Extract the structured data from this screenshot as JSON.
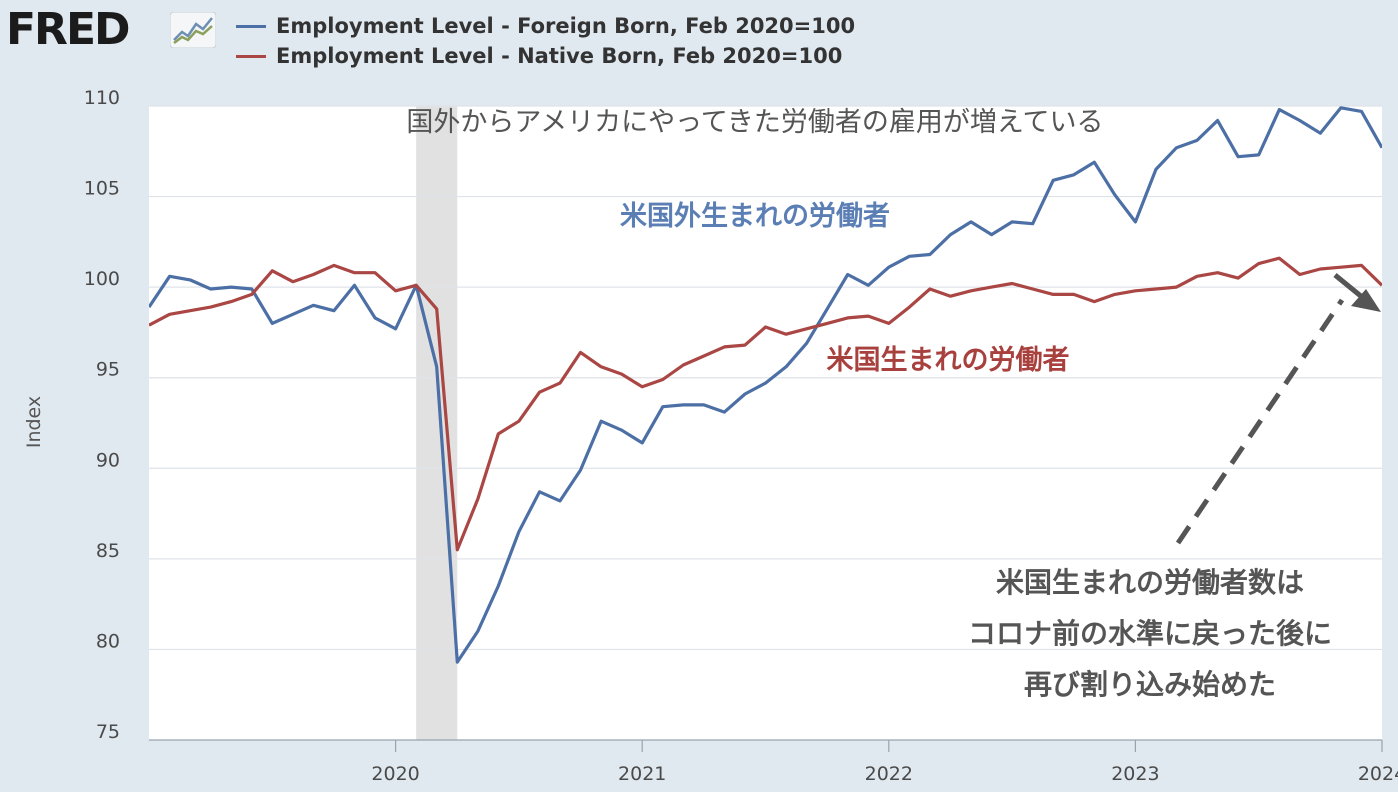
{
  "logo": {
    "text": "FRED"
  },
  "legend": [
    {
      "label": "Employment Level - Foreign Born, Feb 2020=100",
      "color": "#4c6fa5"
    },
    {
      "label": "Employment Level - Native Born, Feb 2020=100",
      "color": "#aa4643"
    }
  ],
  "chart_data": {
    "type": "line",
    "ylabel": "Index",
    "ylim": [
      75,
      110
    ],
    "yticks": [
      "75",
      "80",
      "85",
      "90",
      "95",
      "100",
      "105",
      "110"
    ],
    "xlim": [
      "2019-01",
      "2024-01"
    ],
    "xticks": [
      "2020",
      "2021",
      "2022",
      "2023",
      "2024"
    ],
    "recession": [
      "2020-02",
      "2020-04"
    ],
    "x": [
      "2019-01",
      "2019-02",
      "2019-03",
      "2019-04",
      "2019-05",
      "2019-06",
      "2019-07",
      "2019-08",
      "2019-09",
      "2019-10",
      "2019-11",
      "2019-12",
      "2020-01",
      "2020-02",
      "2020-03",
      "2020-04",
      "2020-05",
      "2020-06",
      "2020-07",
      "2020-08",
      "2020-09",
      "2020-10",
      "2020-11",
      "2020-12",
      "2021-01",
      "2021-02",
      "2021-03",
      "2021-04",
      "2021-05",
      "2021-06",
      "2021-07",
      "2021-08",
      "2021-09",
      "2021-10",
      "2021-11",
      "2021-12",
      "2022-01",
      "2022-02",
      "2022-03",
      "2022-04",
      "2022-05",
      "2022-06",
      "2022-07",
      "2022-08",
      "2022-09",
      "2022-10",
      "2022-11",
      "2022-12",
      "2023-01",
      "2023-02",
      "2023-03",
      "2023-04",
      "2023-05",
      "2023-06",
      "2023-07",
      "2023-08",
      "2023-09",
      "2023-10",
      "2023-11",
      "2023-12",
      "2024-01"
    ],
    "series": [
      {
        "name": "Employment Level - Foreign Born, Feb 2020=100",
        "color": "#4c6fa5",
        "values": [
          98.9,
          100.6,
          100.4,
          99.9,
          100.0,
          99.9,
          98.0,
          98.5,
          99.0,
          98.7,
          100.1,
          98.3,
          97.7,
          100.1,
          95.6,
          79.3,
          81.0,
          83.5,
          86.5,
          88.7,
          88.2,
          89.9,
          92.6,
          92.1,
          91.4,
          93.4,
          93.5,
          93.5,
          93.1,
          94.1,
          94.7,
          95.6,
          96.9,
          98.8,
          100.7,
          100.1,
          101.1,
          101.7,
          101.8,
          102.9,
          103.6,
          102.9,
          103.6,
          103.5,
          105.9,
          106.2,
          106.9,
          105.1,
          103.6,
          106.5,
          107.7,
          108.1,
          109.2,
          107.2,
          107.3,
          109.8,
          109.2,
          108.5,
          109.9,
          109.7,
          107.7
        ]
      },
      {
        "name": "Employment Level - Native Born, Feb 2020=100",
        "color": "#aa4643",
        "values": [
          97.9,
          98.5,
          98.7,
          98.9,
          99.2,
          99.6,
          100.9,
          100.3,
          100.7,
          101.2,
          100.8,
          100.8,
          99.8,
          100.1,
          98.8,
          85.5,
          88.3,
          91.9,
          92.6,
          94.2,
          94.7,
          96.4,
          95.6,
          95.2,
          94.5,
          94.9,
          95.7,
          96.2,
          96.7,
          96.8,
          97.8,
          97.4,
          97.7,
          98.0,
          98.3,
          98.4,
          98.0,
          98.9,
          99.9,
          99.5,
          99.8,
          100.0,
          100.2,
          99.9,
          99.6,
          99.6,
          99.2,
          99.6,
          99.8,
          99.9,
          100.0,
          100.6,
          100.8,
          100.5,
          101.3,
          101.6,
          100.7,
          101.0,
          101.1,
          101.2,
          100.1
        ]
      }
    ],
    "annotations": {
      "title": "国外からアメリカにやってきた労働者の雇用が増えている",
      "foreign_label": "米国外生まれの労働者",
      "native_label": "米国生まれの労働者",
      "note_lines": [
        "米国生まれの労働者数は",
        "コロナ前の水準に戻った後に",
        "再び割り込み始めた"
      ]
    }
  }
}
